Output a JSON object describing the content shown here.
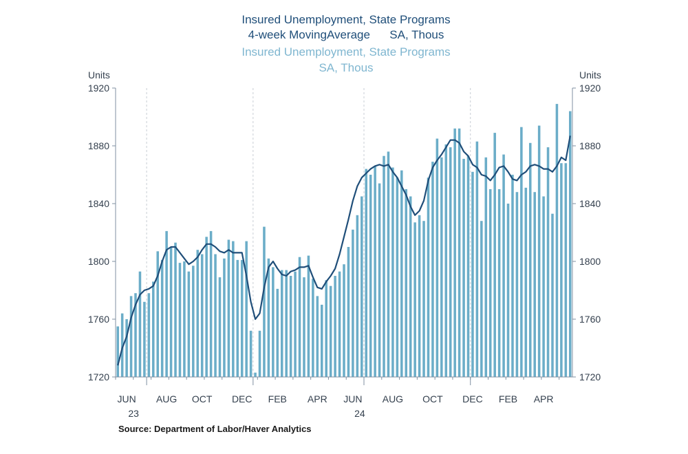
{
  "chart_data": {
    "type": "bar",
    "title_lines": [
      "Insured Unemployment, State Programs",
      "4-week MovingAverage      SA, Thous",
      "Insured Unemployment, State Programs",
      "SA, Thous"
    ],
    "ylabel_left": "Units",
    "ylabel_right": "Units",
    "ylim": [
      1720,
      1920
    ],
    "yticks": [
      "1920",
      "1880",
      "1840",
      "1800",
      "1760",
      "1720"
    ],
    "yticks_values": [
      1920,
      1880,
      1840,
      1800,
      1760,
      1720
    ],
    "x_tick_labels": [
      {
        "month": "JUN",
        "year": "23",
        "index": 2
      },
      {
        "month": "AUG",
        "year": "",
        "index": 11
      },
      {
        "month": "OCT",
        "year": "",
        "index": 19
      },
      {
        "month": "DEC",
        "year": "",
        "index": 28
      },
      {
        "month": "FEB",
        "year": "",
        "index": 36
      },
      {
        "month": "APR",
        "year": "",
        "index": 45
      },
      {
        "month": "JUN",
        "year": "24",
        "index": 53
      },
      {
        "month": "AUG",
        "year": "",
        "index": 62
      },
      {
        "month": "OCT",
        "year": "",
        "index": 71
      },
      {
        "month": "DEC",
        "year": "",
        "index": 80
      },
      {
        "month": "FEB",
        "year": "",
        "index": 88
      },
      {
        "month": "APR",
        "year": "",
        "index": 96
      }
    ],
    "series": [
      {
        "name": "Insured Unemployment, State Programs",
        "type": "bar",
        "color": "#6badc8",
        "values": [
          1755,
          1764,
          1760,
          1776,
          1778,
          1793,
          1772,
          1778,
          1786,
          1807,
          1801,
          1821,
          1810,
          1813,
          1799,
          1800,
          1793,
          1797,
          1808,
          1805,
          1817,
          1821,
          1805,
          1789,
          1802,
          1815,
          1814,
          1801,
          1801,
          1814,
          1752,
          1723,
          1752,
          1824,
          1802,
          1796,
          1781,
          1794,
          1794,
          1790,
          1793,
          1803,
          1789,
          1804,
          1788,
          1776,
          1770,
          1787,
          1783,
          1790,
          1793,
          1798,
          1810,
          1822,
          1832,
          1845,
          1864,
          1860,
          1866,
          1854,
          1873,
          1876,
          1865,
          1858,
          1863,
          1850,
          1845,
          1827,
          1832,
          1828,
          1858,
          1869,
          1885,
          1872,
          1881,
          1879,
          1892,
          1892,
          1871,
          1873,
          1862,
          1883,
          1828,
          1872,
          1850,
          1889,
          1850,
          1874,
          1840,
          1860,
          1848,
          1893,
          1851,
          1882,
          1848,
          1894,
          1845,
          1879,
          1833,
          1909,
          1868,
          1868,
          1904
        ]
      },
      {
        "name": "Insured Unemployment, State Programs 4-week MovingAverage",
        "type": "line",
        "color": "#1f4e79",
        "values": [
          1728,
          1740,
          1748,
          1761,
          1770,
          1777,
          1780,
          1781,
          1783,
          1790,
          1800,
          1808,
          1810,
          1810,
          1806,
          1802,
          1798,
          1800,
          1803,
          1808,
          1812,
          1812,
          1810,
          1807,
          1806,
          1808,
          1806,
          1806,
          1806,
          1790,
          1772,
          1760,
          1764,
          1782,
          1796,
          1800,
          1795,
          1791,
          1790,
          1793,
          1794,
          1796,
          1796,
          1797,
          1789,
          1782,
          1781,
          1786,
          1790,
          1795,
          1805,
          1817,
          1829,
          1842,
          1852,
          1858,
          1861,
          1864,
          1866,
          1867,
          1866,
          1867,
          1862,
          1858,
          1852,
          1846,
          1838,
          1832,
          1835,
          1842,
          1856,
          1865,
          1870,
          1874,
          1879,
          1884,
          1884,
          1882,
          1876,
          1873,
          1867,
          1865,
          1860,
          1859,
          1856,
          1860,
          1865,
          1866,
          1862,
          1857,
          1856,
          1860,
          1862,
          1866,
          1867,
          1866,
          1864,
          1864,
          1862,
          1866,
          1872,
          1870,
          1887
        ]
      }
    ]
  },
  "source": "Source:  Department of Labor/Haver Analytics",
  "colors": {
    "bar": "#6badc8",
    "line": "#1f4e79",
    "title_primary": "#1f4e79",
    "title_secondary": "#7fb6d0",
    "axis": "#7f8fa0",
    "grid": "#c8cdd4"
  }
}
